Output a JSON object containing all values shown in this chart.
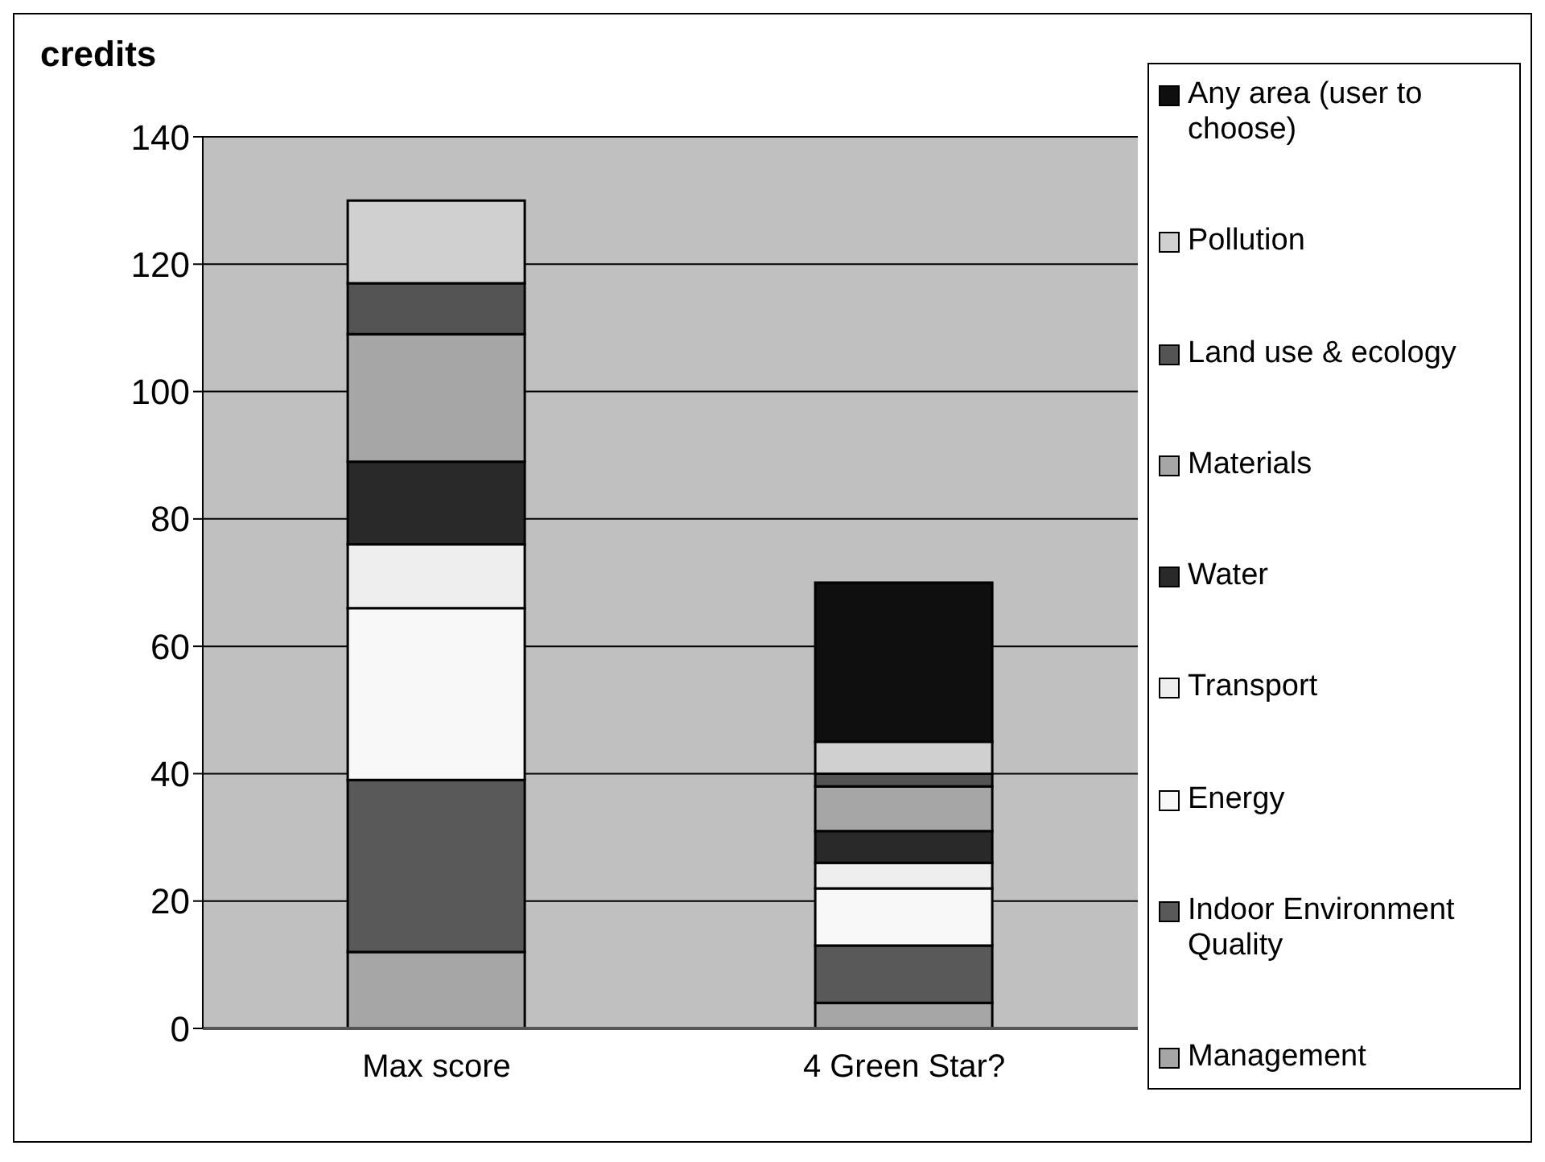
{
  "chart_data": {
    "type": "bar",
    "stacked": true,
    "ylabel": "credits",
    "categories": [
      "Max score",
      "4 Green Star?"
    ],
    "series": [
      {
        "name": "Management",
        "color": "#a6a6a6",
        "values": [
          12,
          4
        ]
      },
      {
        "name": "Indoor Environment Quality",
        "color": "#595959",
        "values": [
          27,
          9
        ]
      },
      {
        "name": "Energy",
        "color": "#f8f8f8",
        "values": [
          27,
          9
        ]
      },
      {
        "name": "Transport",
        "color": "#eeeeee",
        "values": [
          10,
          4
        ]
      },
      {
        "name": "Water",
        "color": "#292929",
        "values": [
          13,
          5
        ]
      },
      {
        "name": "Materials",
        "color": "#a6a6a6",
        "values": [
          20,
          7
        ]
      },
      {
        "name": "Land use & ecology",
        "color": "#545454",
        "values": [
          8,
          2
        ]
      },
      {
        "name": "Pollution",
        "color": "#d0d0d0",
        "values": [
          13,
          5
        ]
      },
      {
        "name": "Any area (user to choose)",
        "color": "#0f0f0f",
        "values": [
          0,
          25
        ]
      }
    ],
    "ylim": [
      0,
      140
    ],
    "yticks": [
      0,
      20,
      40,
      60,
      80,
      100,
      120,
      140
    ],
    "grid": "y",
    "legend": "right"
  }
}
